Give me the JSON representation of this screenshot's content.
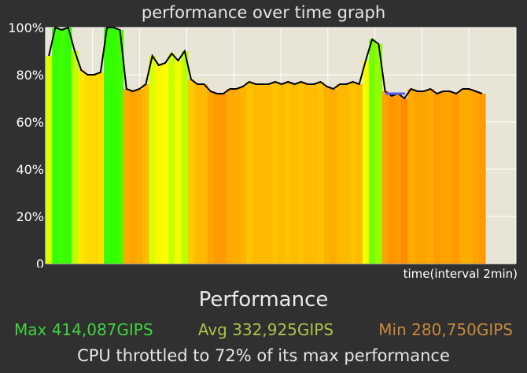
{
  "header": {
    "title": "performance over time graph"
  },
  "chart_data": {
    "type": "area",
    "title": "performance over time graph",
    "xlabel": "time(interval 2min)",
    "ylabel": "",
    "ylim": [
      0,
      100
    ],
    "yticks": [
      "0",
      "20%",
      "40%",
      "60%",
      "80%",
      "100%"
    ],
    "grid": true,
    "gradient": [
      "#ff8c00",
      "#ffff00",
      "#33ff00"
    ],
    "values": [
      88,
      100,
      99,
      100,
      90,
      82,
      80,
      80,
      81,
      100,
      100,
      99,
      74,
      73,
      74,
      76,
      88,
      84,
      85,
      89,
      86,
      90,
      78,
      76,
      76,
      73,
      72,
      72,
      74,
      74,
      75,
      77,
      76,
      76,
      76,
      77,
      76,
      77,
      76,
      77,
      76,
      76,
      77,
      75,
      74,
      76,
      76,
      77,
      76,
      86,
      95,
      93,
      73,
      71,
      72,
      70,
      74,
      73,
      73,
      74,
      72,
      73,
      73,
      72,
      74,
      74,
      73,
      72
    ]
  },
  "footer": {
    "heading": "Performance",
    "max": "Max 414,087GIPS",
    "avg": "Avg 332,925GIPS",
    "min": "Min 280,750GIPS",
    "throttle": "CPU throttled to 72% of its max performance"
  }
}
